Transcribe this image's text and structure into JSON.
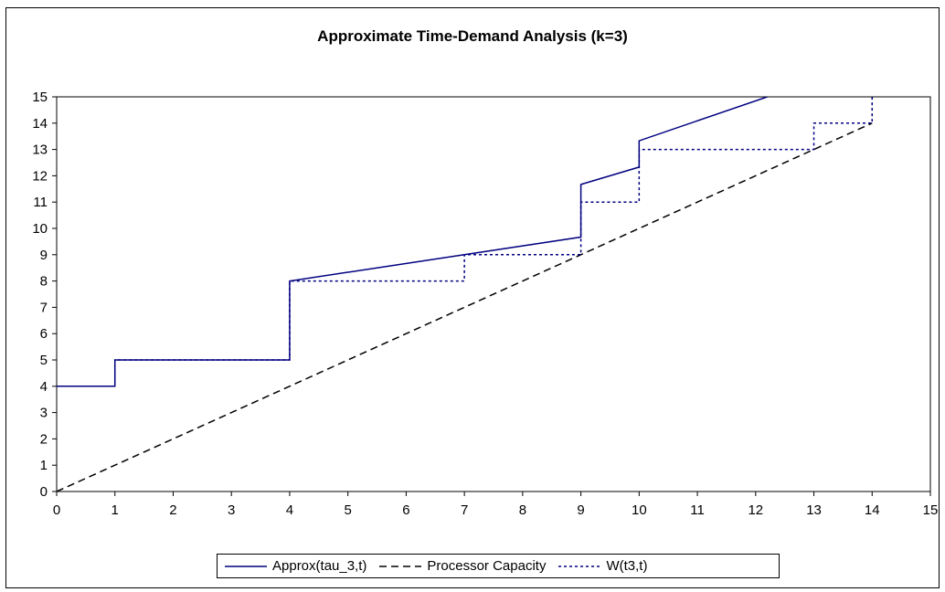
{
  "chart_data": {
    "type": "line",
    "title": "Approximate Time-Demand Analysis (k=3)",
    "xlabel": "",
    "ylabel": "",
    "xlim": [
      0,
      15
    ],
    "ylim": [
      0,
      15
    ],
    "x_ticks": [
      "0",
      "1",
      "2",
      "3",
      "4",
      "5",
      "6",
      "7",
      "8",
      "9",
      "10",
      "11",
      "12",
      "13",
      "14",
      "15"
    ],
    "y_ticks": [
      "0",
      "1",
      "2",
      "3",
      "4",
      "5",
      "6",
      "7",
      "8",
      "9",
      "10",
      "11",
      "12",
      "13",
      "14",
      "15"
    ],
    "grid": false,
    "legend_position": "bottom",
    "series": [
      {
        "name": "Approx(tau_3,t)",
        "style": "solid",
        "color": "#000080",
        "points": [
          [
            0,
            4
          ],
          [
            1,
            4
          ],
          [
            1,
            5
          ],
          [
            4,
            5
          ],
          [
            4,
            8
          ],
          [
            7,
            9
          ],
          [
            9,
            9.67
          ],
          [
            9,
            11.67
          ],
          [
            10,
            12.33
          ],
          [
            10,
            13.33
          ],
          [
            12.2,
            15
          ]
        ]
      },
      {
        "name": "Processor Capacity",
        "style": "dashed",
        "color": "#000000",
        "points": [
          [
            0,
            0
          ],
          [
            14,
            14
          ]
        ]
      },
      {
        "name": "W(t3,t)",
        "style": "dotted",
        "color": "#000080",
        "points": [
          [
            0,
            4
          ],
          [
            1,
            4
          ],
          [
            1,
            5
          ],
          [
            4,
            5
          ],
          [
            4,
            8
          ],
          [
            7,
            8
          ],
          [
            7,
            9
          ],
          [
            9,
            9
          ],
          [
            9,
            11
          ],
          [
            10,
            11
          ],
          [
            10,
            13
          ],
          [
            13,
            13
          ],
          [
            13,
            14
          ],
          [
            14,
            14
          ],
          [
            14,
            15
          ]
        ]
      }
    ]
  }
}
